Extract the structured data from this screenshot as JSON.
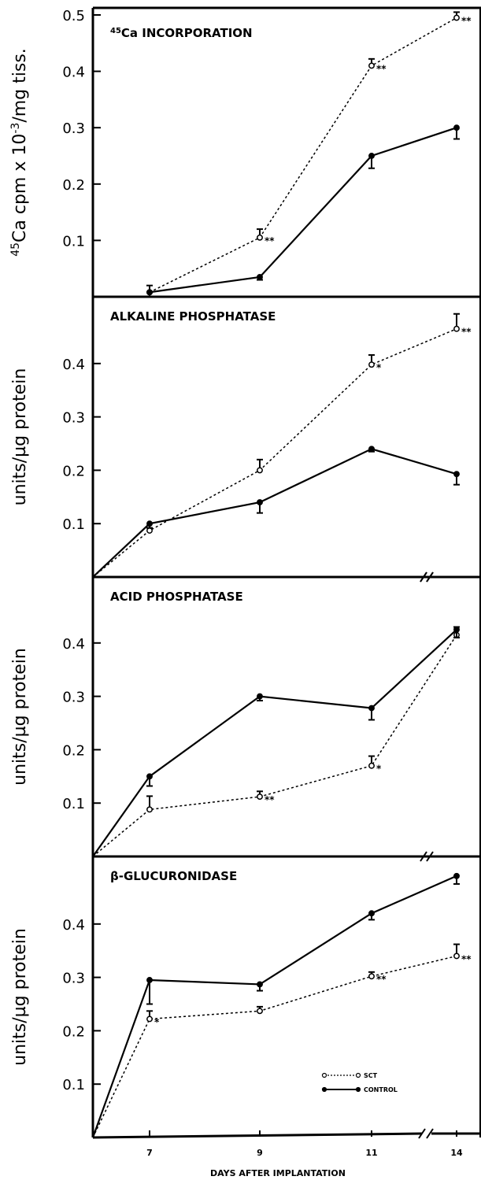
{
  "chart_data": [
    {
      "type": "line",
      "title": "45Ca INCORPORATION",
      "ylabel": "45Ca cpm x 10-3/mg tiss.",
      "yticks": [
        0.1,
        0.2,
        0.3,
        0.4,
        0.5
      ],
      "ytick_labels": [
        "0.1",
        "0.2",
        "0.3",
        "0.4",
        "0.5"
      ],
      "ylim": [
        0,
        0.51
      ],
      "x": [
        7,
        9,
        11,
        14
      ],
      "series": [
        {
          "name": "SCT",
          "style": "dotted-open",
          "values": [
            0.008,
            0.105,
            0.41,
            0.495
          ],
          "err": [
            0.012,
            0.015,
            0.012,
            0.01
          ],
          "sig": [
            "",
            "**",
            "**",
            "**"
          ]
        },
        {
          "name": "CONTROL",
          "style": "solid-filled",
          "values": [
            0.008,
            0.035,
            0.25,
            0.3
          ],
          "err": [
            0.008,
            0.005,
            0.022,
            0.02
          ],
          "sig": [
            "",
            "",
            "",
            ""
          ]
        }
      ]
    },
    {
      "type": "line",
      "title": "ALKALINE PHOSPHATASE",
      "ylabel": "units/µg protein",
      "yticks": [
        0.1,
        0.2,
        0.3,
        0.4
      ],
      "ytick_labels": [
        "0.1",
        "0.2",
        "0.3",
        "0.4"
      ],
      "ylim": [
        0,
        0.49
      ],
      "x": [
        6,
        7,
        9,
        11,
        14
      ],
      "series": [
        {
          "name": "SCT",
          "style": "dotted-open",
          "values": [
            0,
            0.087,
            0.2,
            0.398,
            0.465
          ],
          "err": [
            0,
            0.005,
            0.02,
            0.018,
            0.028
          ],
          "sig": [
            "",
            "",
            "",
            "*",
            "**"
          ]
        },
        {
          "name": "CONTROL",
          "style": "solid-filled",
          "values": [
            0,
            0.1,
            0.14,
            0.24,
            0.193
          ],
          "err": [
            0,
            0.008,
            0.02,
            0.005,
            0.02
          ],
          "sig": [
            "",
            "",
            "",
            "",
            ""
          ]
        }
      ]
    },
    {
      "type": "line",
      "title": "ACID PHOSPHATASE",
      "ylabel": "units/µg protein",
      "yticks": [
        0.1,
        0.2,
        0.3,
        0.4
      ],
      "ytick_labels": [
        "0.1",
        "0.2",
        "0.3",
        "0.4"
      ],
      "ylim": [
        0,
        0.49
      ],
      "x": [
        6,
        7,
        9,
        11,
        14
      ],
      "series": [
        {
          "name": "SCT",
          "style": "dotted-open",
          "values": [
            0,
            0.088,
            0.112,
            0.17,
            0.415
          ],
          "err": [
            0,
            0.025,
            0.01,
            0.018,
            0.015
          ],
          "sig": [
            "",
            "",
            "**",
            "*",
            ""
          ]
        },
        {
          "name": "CONTROL",
          "style": "solid-filled",
          "values": [
            0,
            0.15,
            0.3,
            0.278,
            0.425
          ],
          "err": [
            0,
            0.018,
            0.008,
            0.022,
            0.015
          ],
          "sig": [
            "",
            "",
            "",
            "",
            ""
          ]
        }
      ]
    },
    {
      "type": "line",
      "title": "β-GLUCURONIDASE",
      "ylabel": "units/µg protein",
      "yticks": [
        0.1,
        0.2,
        0.3,
        0.4
      ],
      "ytick_labels": [
        "0.1",
        "0.2",
        "0.3",
        "0.4"
      ],
      "ylim": [
        0,
        0.49
      ],
      "x": [
        6,
        7,
        9,
        11,
        14
      ],
      "series": [
        {
          "name": "SCT",
          "style": "dotted-open",
          "values": [
            0,
            0.222,
            0.237,
            0.302,
            0.34
          ],
          "err": [
            0,
            0.015,
            0.008,
            0.008,
            0.022
          ],
          "sig": [
            "",
            "*",
            "",
            "**",
            "**"
          ]
        },
        {
          "name": "CONTROL",
          "style": "solid-filled",
          "values": [
            0,
            0.295,
            0.287,
            0.42,
            0.49
          ],
          "err": [
            0,
            0.045,
            0.012,
            0.012,
            0.015
          ],
          "sig": [
            "",
            "",
            "",
            "",
            ""
          ]
        }
      ]
    }
  ],
  "x_axis": {
    "label": "DAYS AFTER IMPLANTATION",
    "ticks": [
      7,
      9,
      11,
      14
    ],
    "tick_labels": [
      "7",
      "9",
      "11",
      "14"
    ],
    "break_between": [
      11,
      14
    ]
  },
  "legend": {
    "position": "lower-right of bottom panel",
    "entries": [
      {
        "label": "SCT",
        "style": "dotted-open"
      },
      {
        "label": "CONTROL",
        "style": "solid-filled"
      }
    ]
  }
}
